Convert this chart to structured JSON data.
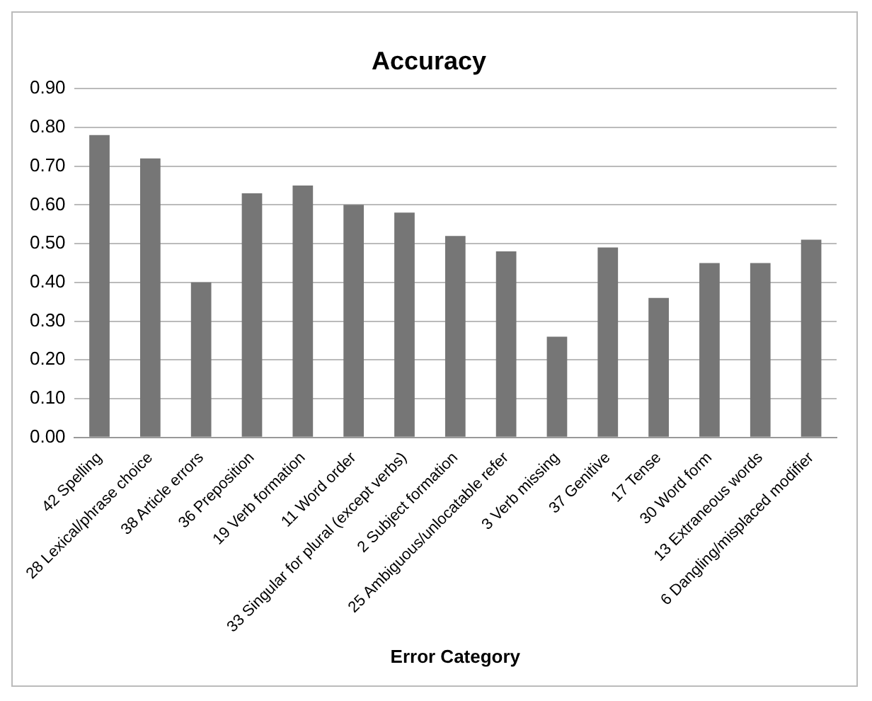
{
  "chart_data": {
    "type": "bar",
    "title": "Accuracy",
    "xlabel": "Error Category",
    "categories": [
      "42 Spelling",
      "28 Lexical/phrase choice",
      "38 Article errors",
      "36 Preposition",
      "19 Verb formation",
      "11 Word order",
      "33 Singular for plural (except verbs)",
      "2 Subject formation",
      "25 Ambiguous/unlocatable refer",
      "3 Verb missing",
      "37 Genitive",
      "17 Tense",
      "30 Word form",
      "13 Extraneous words",
      "6 Dangling/misplaced modifier"
    ],
    "values": [
      0.78,
      0.72,
      0.4,
      0.63,
      0.65,
      0.6,
      0.58,
      0.52,
      0.48,
      0.26,
      0.49,
      0.36,
      0.45,
      0.45,
      0.51
    ],
    "color": "#767676",
    "ylim": [
      0,
      0.9
    ],
    "yticks": [
      {
        "value": 0,
        "label": "0.00"
      },
      {
        "value": 0.1,
        "label": "0.10"
      },
      {
        "value": 0.2,
        "label": "0.20"
      },
      {
        "value": 0.3,
        "label": "0.30"
      },
      {
        "value": 0.4,
        "label": "0.40"
      },
      {
        "value": 0.5,
        "label": "0.50"
      },
      {
        "value": 0.6,
        "label": "0.60"
      },
      {
        "value": 0.7,
        "label": "0.70"
      },
      {
        "value": 0.8,
        "label": "0.80"
      },
      {
        "value": 0.9,
        "label": "0.90"
      }
    ],
    "grid": "y",
    "legend": false
  }
}
